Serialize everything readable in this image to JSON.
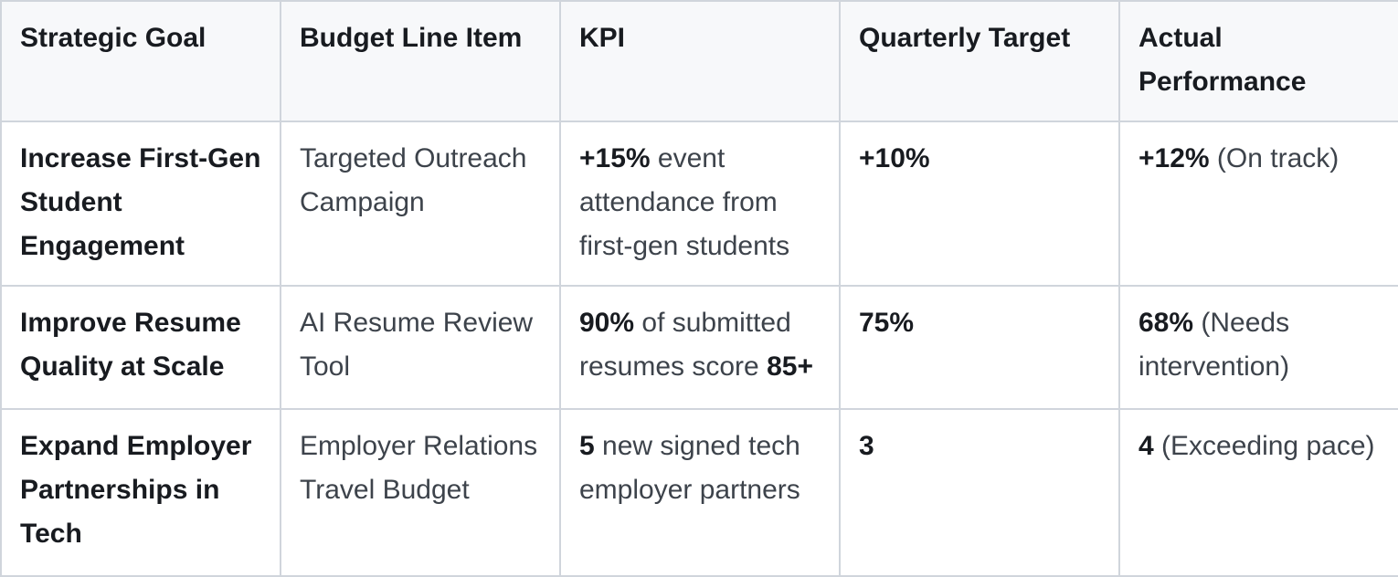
{
  "colors": {
    "border": "#d0d5dc",
    "header_bg": "#f7f8fa",
    "text_strong": "#181b20",
    "text_regular": "#3d434b",
    "cell_bg": "#ffffff"
  },
  "table": {
    "columns": [
      {
        "key": "strategic-goal",
        "label": "Strategic Goal"
      },
      {
        "key": "budget-line-item",
        "label": "Budget Line Item"
      },
      {
        "key": "kpi",
        "label": "KPI"
      },
      {
        "key": "quarterly-target",
        "label": "Quarterly Target"
      },
      {
        "key": "actual-performance",
        "label": "Actual Performance"
      }
    ],
    "rows": [
      {
        "cells": [
          [
            {
              "t": "Increase First-Gen Student Engagement",
              "b": true
            }
          ],
          [
            {
              "t": "Targeted Outreach Campaign",
              "b": false
            }
          ],
          [
            {
              "t": "+15%",
              "b": true
            },
            {
              "t": " event attendance from first-gen students",
              "b": false
            }
          ],
          [
            {
              "t": "+10%",
              "b": true
            }
          ],
          [
            {
              "t": "+12%",
              "b": true
            },
            {
              "t": " (On track)",
              "b": false
            }
          ]
        ]
      },
      {
        "cells": [
          [
            {
              "t": "Improve Resume Quality at Scale",
              "b": true
            }
          ],
          [
            {
              "t": "AI Resume Review Tool",
              "b": false
            }
          ],
          [
            {
              "t": "90%",
              "b": true
            },
            {
              "t": " of submitted resumes score ",
              "b": false
            },
            {
              "t": "85+",
              "b": true
            }
          ],
          [
            {
              "t": "75%",
              "b": true
            }
          ],
          [
            {
              "t": "68%",
              "b": true
            },
            {
              "t": " (Needs intervention)",
              "b": false
            }
          ]
        ]
      },
      {
        "cells": [
          [
            {
              "t": "Expand Employer Partnerships in Tech",
              "b": true
            }
          ],
          [
            {
              "t": "Employer Relations Travel Budget",
              "b": false
            }
          ],
          [
            {
              "t": "5",
              "b": true
            },
            {
              "t": " new signed tech employer partners",
              "b": false
            }
          ],
          [
            {
              "t": "3",
              "b": true
            }
          ],
          [
            {
              "t": "4",
              "b": true
            },
            {
              "t": " (Exceeding pace)",
              "b": false
            }
          ]
        ]
      }
    ]
  }
}
